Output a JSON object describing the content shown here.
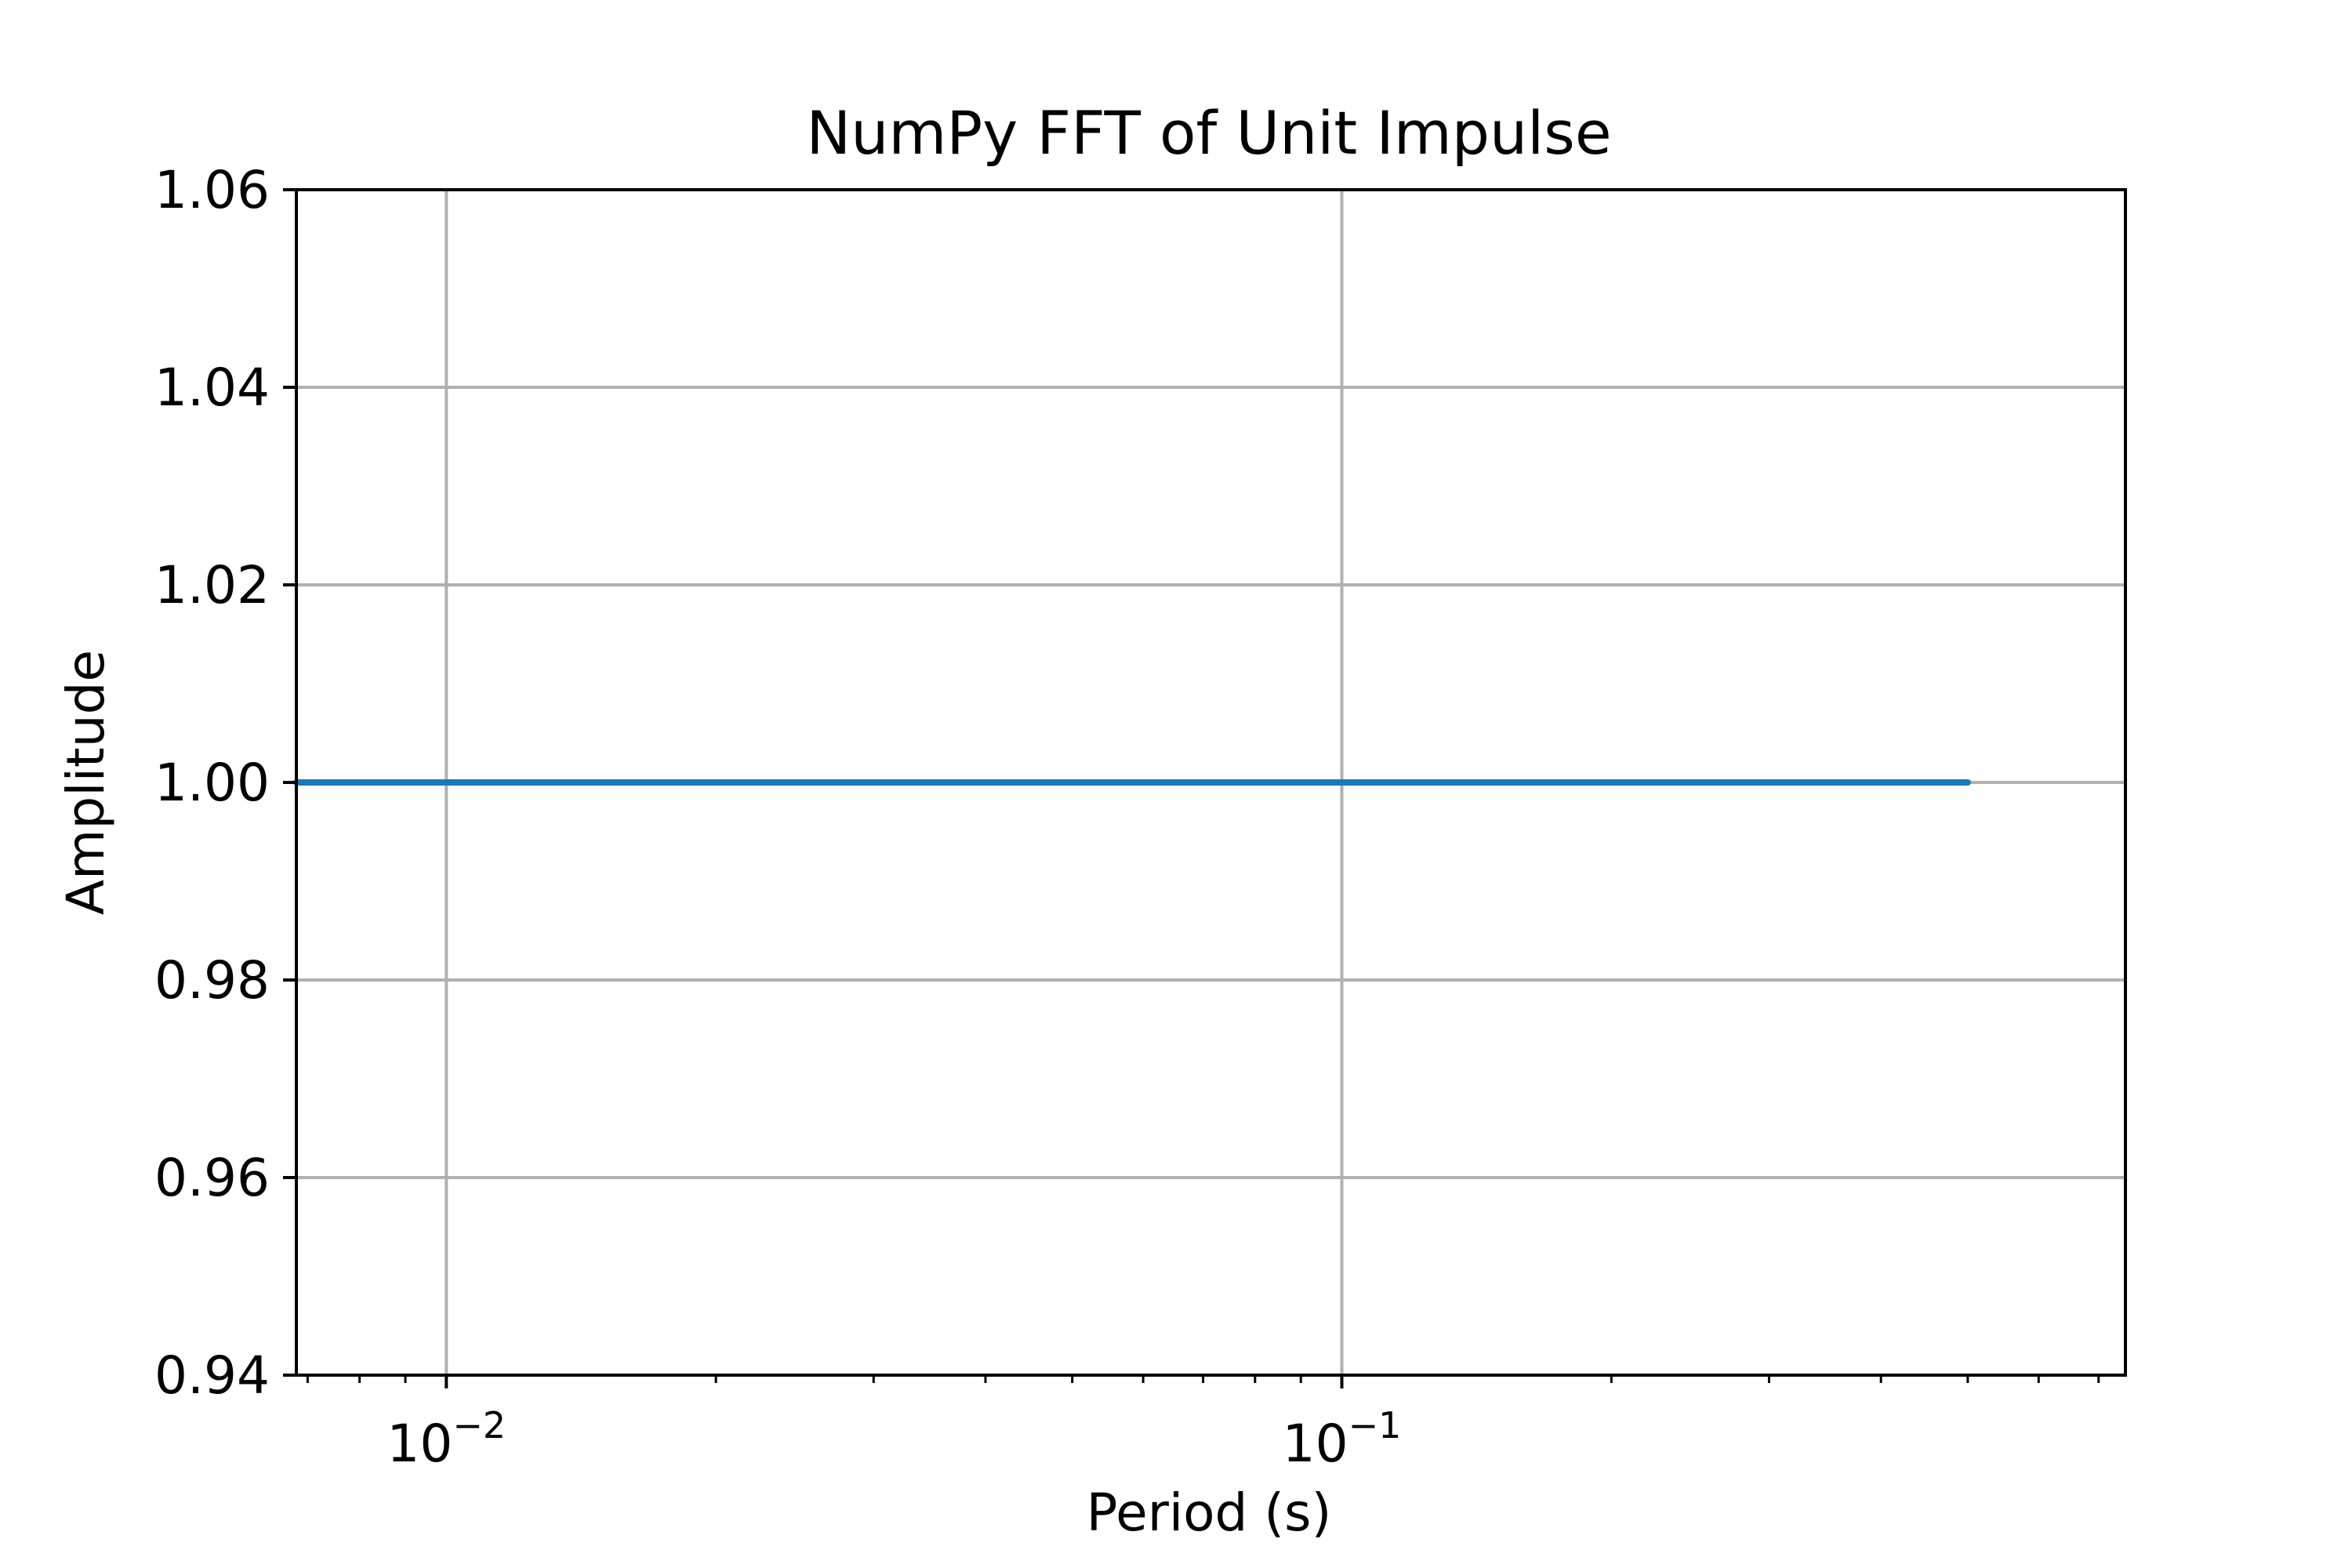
{
  "chart_data": {
    "type": "line",
    "title": "NumPy FFT of Unit Impulse",
    "xlabel": "Period (s)",
    "ylabel": "Amplitude",
    "xscale": "log",
    "xlim": [
      0.0068,
      0.75
    ],
    "ylim": [
      0.94,
      1.06
    ],
    "grid": true,
    "xticks": [
      {
        "value": 0.01,
        "base": "10",
        "exponent": "−2"
      },
      {
        "value": 0.1,
        "base": "10",
        "exponent": "−1"
      }
    ],
    "yticks": [
      {
        "value": 0.94,
        "label": "0.94"
      },
      {
        "value": 0.96,
        "label": "0.96"
      },
      {
        "value": 0.98,
        "label": "0.98"
      },
      {
        "value": 1.0,
        "label": "1.00"
      },
      {
        "value": 1.02,
        "label": "1.02"
      },
      {
        "value": 1.04,
        "label": "1.04"
      },
      {
        "value": 1.06,
        "label": "1.06"
      }
    ],
    "series": [
      {
        "color": "#1f77b4",
        "x": [
          0.0068,
          0.008,
          0.01,
          0.015,
          0.02,
          0.03,
          0.05,
          0.07,
          0.1,
          0.15,
          0.2,
          0.3,
          0.4,
          0.5
        ],
        "y": [
          1.0,
          1.0,
          1.0,
          1.0,
          1.0,
          1.0,
          1.0,
          1.0,
          1.0,
          1.0,
          1.0,
          1.0,
          1.0,
          1.0
        ]
      }
    ]
  }
}
